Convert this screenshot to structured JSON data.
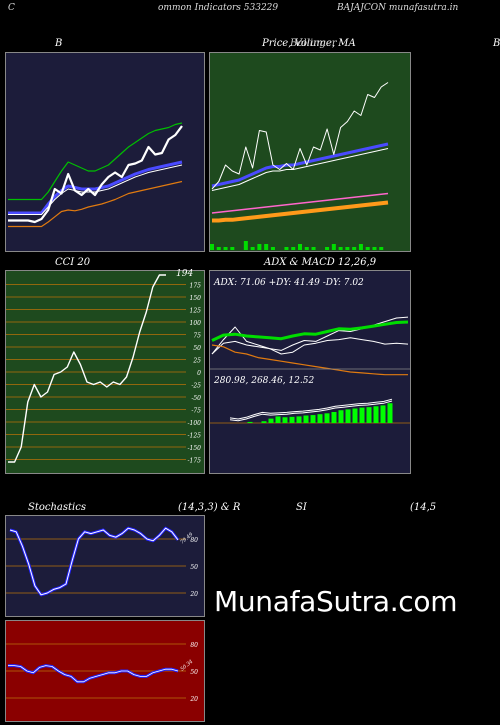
{
  "header": {
    "left": "C",
    "center": "ommon  Indicators 533229",
    "right": "BAJAJCON  munafasutra.in"
  },
  "panels": {
    "bollinger": {
      "title": "B"
    },
    "price": {
      "title": "Price,  Volume,  MA",
      "overlay": "Bollinger"
    },
    "edge_letter": "B",
    "cci": {
      "title": "CCI 20",
      "current": "194",
      "ticks": [
        "175",
        "150",
        "125",
        "100",
        "75",
        "50",
        "25",
        "0",
        "-25",
        "-50",
        "-75",
        "-100",
        "-125",
        "-150",
        "-175"
      ]
    },
    "adx": {
      "title": "ADX  & MACD 12,26,9",
      "readout": "ADX: 71.06   +DY: 41.49 -DY: 7.02",
      "macd_readout": "280.98,  268.46,  12.52"
    },
    "stoch": {
      "title_left": "Stochastics",
      "title_mid": "(14,3,3) & R",
      "title_right_a": "SI",
      "title_right_b": "(14,5",
      "current": "79.49",
      "ticks": [
        "80",
        "50",
        "20"
      ]
    },
    "rsi": {
      "current": "50.34",
      "ticks": [
        "80",
        "50",
        "20"
      ]
    }
  },
  "watermark": "MunafaSutra.com",
  "colors": {
    "navy_bg": "#1c1c3a",
    "green_bg": "#1e4a1e",
    "red_bg": "#8a0000",
    "grid_orange": "#b8720a"
  },
  "chart_data": [
    {
      "type": "line",
      "title": "B",
      "series": [
        {
          "values": [
            22,
            22,
            22,
            22,
            22,
            22,
            28,
            35,
            42,
            44,
            43,
            45,
            48,
            50,
            52,
            55,
            58,
            62,
            66,
            68,
            70,
            72,
            74,
            76,
            78,
            80,
            82
          ]
        },
        {
          "values": [
            40,
            40,
            40,
            40,
            40,
            40,
            52,
            62,
            70,
            76,
            74,
            72,
            72,
            72,
            74,
            76,
            80,
            84,
            88,
            92,
            95,
            98,
            100,
            102,
            104,
            106,
            108
          ]
        },
        {
          "values": [
            38,
            38,
            38,
            38,
            38,
            38,
            48,
            58,
            66,
            72,
            70,
            68,
            68,
            68,
            70,
            72,
            76,
            80,
            84,
            88,
            91,
            94,
            96,
            98,
            100,
            102,
            104
          ]
        },
        {
          "values": [
            58,
            58,
            58,
            58,
            58,
            58,
            68,
            82,
            96,
            108,
            104,
            100,
            96,
            96,
            100,
            104,
            112,
            120,
            128,
            134,
            140,
            146,
            150,
            152,
            154,
            158,
            160
          ]
        },
        {
          "values": [
            30,
            30,
            30,
            30,
            28,
            32,
            44,
            72,
            66,
            92,
            70,
            64,
            72,
            64,
            78,
            88,
            94,
            88,
            104,
            106,
            110,
            128,
            118,
            120,
            138,
            144,
            156
          ]
        }
      ]
    },
    {
      "type": "line",
      "title": "Price,  Volume,  MA",
      "series": [
        {
          "values": [
            30,
            30,
            31,
            31,
            32,
            33,
            34,
            35,
            36,
            37,
            38,
            39,
            40,
            41,
            42,
            43,
            44,
            45,
            46,
            47,
            48,
            49,
            50,
            51,
            52,
            53,
            54
          ]
        },
        {
          "values": [
            40,
            41,
            42,
            43,
            44,
            45,
            46,
            47,
            48,
            49,
            50,
            51,
            52,
            53,
            54,
            55,
            56,
            57,
            58,
            59,
            60,
            61,
            62,
            63,
            64,
            65,
            66
          ]
        },
        {
          "values": [
            70,
            72,
            74,
            76,
            78,
            82,
            86,
            90,
            94,
            96,
            96,
            98,
            98,
            100,
            102,
            104,
            106,
            108,
            110,
            112,
            114,
            116,
            118,
            120,
            122,
            124,
            126
          ]
        },
        {
          "values": [
            76,
            78,
            80,
            82,
            84,
            88,
            92,
            96,
            100,
            102,
            102,
            104,
            104,
            106,
            108,
            110,
            112,
            114,
            116,
            118,
            120,
            122,
            124,
            126,
            128,
            130,
            132
          ]
        },
        {
          "values": [
            72,
            82,
            104,
            96,
            92,
            128,
            100,
            150,
            148,
            104,
            98,
            106,
            98,
            126,
            104,
            128,
            124,
            152,
            118,
            154,
            162,
            176,
            170,
            198,
            194,
            208,
            214
          ]
        }
      ],
      "volume": [
        2,
        1,
        1,
        1,
        0,
        3,
        1,
        2,
        2,
        1,
        0,
        1,
        1,
        2,
        1,
        1,
        0,
        1,
        2,
        1,
        1,
        1,
        2,
        1,
        1,
        1,
        0
      ]
    },
    {
      "type": "line",
      "title": "CCI 20",
      "ylim": [
        -200,
        200
      ],
      "series": [
        {
          "values": [
            -180,
            -180,
            -150,
            -60,
            -25,
            -50,
            -40,
            -5,
            0,
            10,
            40,
            15,
            -20,
            -25,
            -20,
            -30,
            -20,
            -25,
            -10,
            30,
            80,
            120,
            170,
            194,
            194
          ]
        }
      ]
    },
    {
      "type": "line",
      "title": "ADX  & MACD 12,26,9",
      "series": [
        {
          "values": [
            30,
            42,
            44,
            40,
            38,
            36,
            34,
            40,
            45,
            44,
            50,
            56,
            55,
            58,
            62,
            66,
            70,
            71
          ]
        },
        {
          "values": [
            30,
            46,
            60,
            44,
            40,
            36,
            30,
            32,
            40,
            42,
            45,
            46,
            48,
            46,
            44,
            41,
            42,
            41
          ]
        },
        {
          "values": [
            40,
            38,
            32,
            30,
            26,
            24,
            22,
            20,
            18,
            16,
            14,
            12,
            10,
            9,
            8,
            7,
            7,
            7
          ]
        }
      ],
      "macd": [
        5,
        0,
        8,
        20,
        30,
        26,
        28,
        30,
        34,
        36,
        40,
        44,
        50,
        58,
        62,
        66,
        70,
        72,
        76,
        80,
        90
      ]
    },
    {
      "type": "line",
      "title": "Stochastics",
      "ylim": [
        0,
        100
      ],
      "series": [
        {
          "values": [
            90,
            88,
            72,
            52,
            28,
            18,
            20,
            24,
            26,
            30,
            56,
            80,
            88,
            86,
            88,
            90,
            84,
            82,
            86,
            92,
            90,
            86,
            80,
            78,
            84,
            92,
            88,
            79
          ]
        }
      ]
    },
    {
      "type": "line",
      "ylim": [
        0,
        100
      ],
      "series": [
        {
          "values": [
            56,
            56,
            55,
            50,
            48,
            54,
            56,
            55,
            50,
            46,
            44,
            38,
            38,
            42,
            44,
            46,
            48,
            48,
            50,
            50,
            46,
            44,
            44,
            48,
            50,
            52,
            52,
            50
          ]
        }
      ]
    }
  ]
}
